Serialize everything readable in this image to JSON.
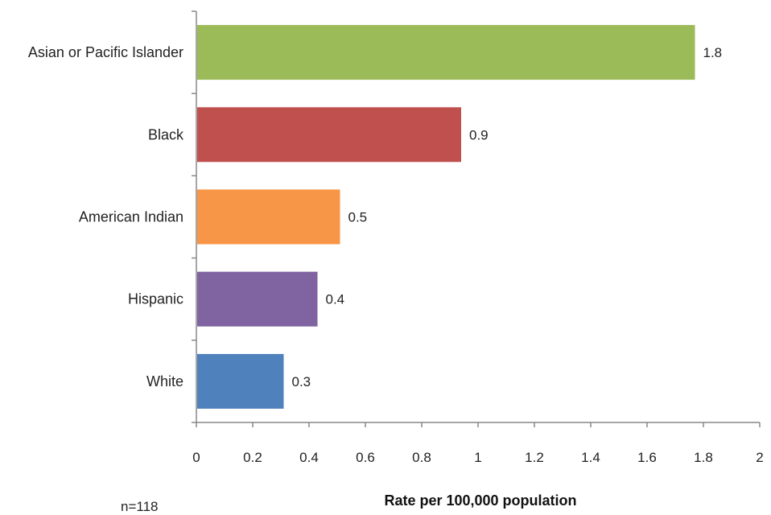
{
  "chart_data": {
    "type": "bar",
    "orientation": "horizontal",
    "categories": [
      "Asian or Pacific Islander",
      "Black",
      "American Indian",
      "Hispanic",
      "White"
    ],
    "values": [
      1.8,
      0.9,
      0.5,
      0.4,
      0.3
    ],
    "bar_values": [
      1.77,
      0.94,
      0.51,
      0.43,
      0.31
    ],
    "value_labels": [
      "1.8",
      "0.9",
      "0.5",
      "0.4",
      "0.3"
    ],
    "colors": [
      "#9bbb59",
      "#c0504d",
      "#f79646",
      "#8064a2",
      "#4f81bd"
    ],
    "xlabel": "Rate per 100,000 population",
    "ylabel": "",
    "xlim": [
      0,
      2
    ],
    "xticks": [
      "0",
      "0.2",
      "0.4",
      "0.6",
      "0.8",
      "1",
      "1.2",
      "1.4",
      "1.6",
      "1.8",
      "2"
    ],
    "grid": false,
    "legend": "none"
  },
  "note": "n=118"
}
